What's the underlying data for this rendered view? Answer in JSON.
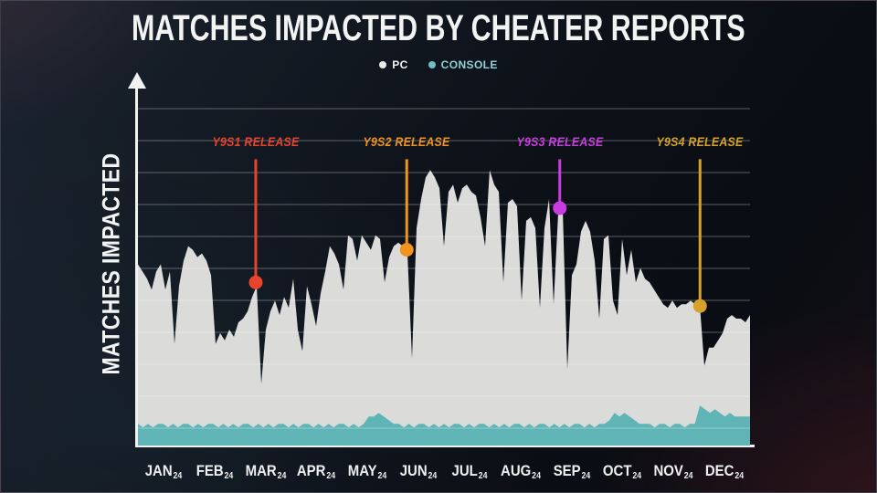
{
  "title": "MATCHES IMPACTED BY CHEATER REPORTS",
  "ylabel": "MATCHES IMPACTED",
  "legend": [
    {
      "label": "PC",
      "swatch_color": "#e9ebeb",
      "text_color": "#f2f3f3"
    },
    {
      "label": "CONSOLE",
      "swatch_color": "#6fc0c3",
      "text_color": "#8ed2d5"
    }
  ],
  "chart_data": {
    "type": "area",
    "title": "MATCHES IMPACTED BY CHEATER REPORTS",
    "xlabel": "",
    "ylabel": "MATCHES IMPACTED",
    "x_unit": "month (2024)",
    "x_tick_labels": [
      "JAN",
      "FEB",
      "MAR",
      "APR",
      "MAY",
      "JUN",
      "JUL",
      "AUG",
      "SEP",
      "OCT",
      "NOV",
      "DEC"
    ],
    "x_tick_suffix": "24",
    "x_range": [
      0,
      12
    ],
    "y_range": [
      0,
      100
    ],
    "y_note": "relative scale - no numeric ticks shown on axis",
    "grid": true,
    "gridline_count": 11,
    "legend_position": "top-center",
    "series": [
      {
        "name": "PC",
        "color": "#dbdcda",
        "values": [
          50,
          48,
          46,
          43,
          48,
          50,
          43,
          48,
          28,
          44,
          51,
          55,
          54,
          52,
          53,
          51,
          47,
          28,
          31,
          29,
          32,
          30,
          34,
          35,
          37,
          41,
          44,
          17,
          32,
          37,
          40,
          36,
          41,
          38,
          46,
          32,
          26,
          44,
          39,
          33,
          42,
          48,
          55,
          53,
          50,
          43,
          58,
          57,
          51,
          58,
          56,
          54,
          58,
          57,
          45,
          52,
          55,
          56,
          55,
          53,
          24,
          60,
          68,
          74,
          76,
          74,
          71,
          55,
          70,
          72,
          67,
          71,
          72,
          70,
          69,
          63,
          55,
          76,
          72,
          70,
          45,
          67,
          68,
          66,
          40,
          62,
          63,
          60,
          38,
          60,
          68,
          39,
          64,
          65,
          21,
          47,
          50,
          59,
          62,
          59,
          51,
          35,
          57,
          58,
          40,
          36,
          57,
          47,
          54,
          45,
          49,
          46,
          45,
          43,
          41,
          39,
          38,
          40,
          38,
          39,
          39,
          40,
          39,
          39,
          22,
          27,
          27,
          29,
          31,
          35,
          36,
          35,
          35,
          34,
          36
        ]
      },
      {
        "name": "CONSOLE",
        "color": "#5fb4b6",
        "values": [
          6,
          5,
          6,
          5,
          6,
          6,
          5,
          6,
          5,
          6,
          6,
          5,
          6,
          5,
          6,
          6,
          5,
          6,
          5,
          6,
          5,
          6,
          6,
          5,
          6,
          5,
          6,
          5,
          6,
          6,
          5,
          6,
          5,
          6,
          6,
          5,
          6,
          5,
          6,
          5,
          6,
          6,
          5,
          6,
          5,
          6,
          8,
          8,
          9,
          8,
          7,
          6,
          6,
          5,
          6,
          5,
          6,
          6,
          5,
          6,
          5,
          6,
          5,
          6,
          6,
          5,
          6,
          5,
          6,
          6,
          5,
          6,
          5,
          6,
          5,
          6,
          6,
          5,
          6,
          5,
          6,
          6,
          5,
          6,
          5,
          6,
          5,
          6,
          6,
          5,
          6,
          5,
          6,
          6,
          7,
          9,
          8,
          9,
          8,
          7,
          6,
          6,
          6,
          5,
          6,
          6,
          5,
          6,
          6,
          5,
          6,
          6,
          11,
          10,
          9,
          10,
          9,
          8,
          9,
          8,
          8,
          8,
          8
        ]
      }
    ],
    "annotations": [
      {
        "label": "Y9S1 RELEASE",
        "color": "#e8432d",
        "month": 2.31,
        "dot_value": 45,
        "line_top_value": 79
      },
      {
        "label": "Y9S2 RELEASE",
        "color": "#f0931f",
        "month": 5.27,
        "dot_value": 54,
        "line_top_value": 79
      },
      {
        "label": "Y9S3 RELEASE",
        "color": "#c93ce0",
        "month": 8.27,
        "dot_value": 65.5,
        "line_top_value": 79
      },
      {
        "label": "Y9S4 RELEASE",
        "color": "#d6a22b",
        "month": 11.02,
        "dot_value": 38.5,
        "line_top_value": 79
      }
    ]
  }
}
